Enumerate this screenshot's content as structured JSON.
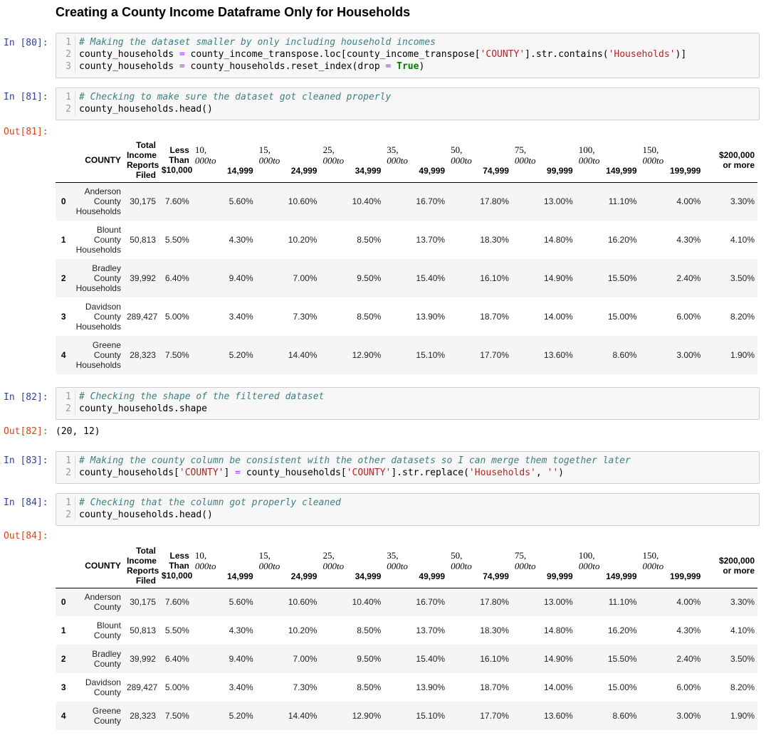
{
  "heading": "Creating a County Income Dataframe Only for Households",
  "cells": [
    {
      "prompt": "In [80]:",
      "lines": [
        {
          "n": "1",
          "parts": [
            [
              "cm",
              "# Making the dataset smaller by only including household incomes"
            ]
          ]
        },
        {
          "n": "2",
          "parts": [
            [
              "",
              "county_households "
            ],
            [
              "op",
              "="
            ],
            [
              "",
              " county_income_transpose.loc[county_income_transpose["
            ],
            [
              "st",
              "'COUNTY'"
            ],
            [
              "",
              "].str.contains("
            ],
            [
              "st",
              "'Households'"
            ],
            [
              "",
              ")]"
            ]
          ]
        },
        {
          "n": "3",
          "parts": [
            [
              "",
              "county_households "
            ],
            [
              "op",
              "="
            ],
            [
              "",
              " county_households.reset_index(drop "
            ],
            [
              "op",
              "="
            ],
            [
              "",
              " "
            ],
            [
              "kw",
              "True"
            ],
            [
              "",
              ")"
            ]
          ]
        }
      ]
    },
    {
      "prompt": "In [81]:",
      "lines": [
        {
          "n": "1",
          "parts": [
            [
              "cm",
              "# Checking to make sure the dataset got cleaned properly"
            ]
          ]
        },
        {
          "n": "2",
          "parts": [
            [
              "",
              "county_households.head()"
            ]
          ]
        }
      ]
    },
    {
      "prompt": "In [82]:",
      "lines": [
        {
          "n": "1",
          "parts": [
            [
              "cm",
              "# Checking the shape of the filtered dataset"
            ]
          ]
        },
        {
          "n": "2",
          "parts": [
            [
              "",
              "county_households.shape"
            ]
          ]
        }
      ]
    },
    {
      "prompt": "In [83]:",
      "lines": [
        {
          "n": "1",
          "parts": [
            [
              "cm",
              "# Making the county column be consistent with the other datasets so I can merge them together later"
            ]
          ]
        },
        {
          "n": "2",
          "parts": [
            [
              "",
              "county_households["
            ],
            [
              "st",
              "'COUNTY'"
            ],
            [
              "",
              "] "
            ],
            [
              "op",
              "="
            ],
            [
              "",
              " county_households["
            ],
            [
              "st",
              "'COUNTY'"
            ],
            [
              "",
              "].str.replace("
            ],
            [
              "st",
              "'Households'"
            ],
            [
              "",
              ", "
            ],
            [
              "st",
              "''"
            ],
            [
              "",
              ")"
            ]
          ]
        }
      ]
    },
    {
      "prompt": "In [84]:",
      "lines": [
        {
          "n": "1",
          "parts": [
            [
              "cm",
              "# Checking that the column got properly cleaned"
            ]
          ]
        },
        {
          "n": "2",
          "parts": [
            [
              "",
              "county_households.head()"
            ]
          ]
        }
      ]
    }
  ],
  "outputs": {
    "out81_prompt": "Out[81]:",
    "out82_prompt": "Out[82]:",
    "out82_text": "(20, 12)",
    "out84_prompt": "Out[84]:"
  },
  "table_header": {
    "county": "COUNTY",
    "total": [
      "Total",
      "Income",
      "Reports",
      "Filed"
    ],
    "less": [
      "Less",
      "Than",
      "$10,000"
    ],
    "ranges": [
      {
        "top": "10,",
        "mid": "000to",
        "end": "14,999"
      },
      {
        "top": "15,",
        "mid": "000to",
        "end": "24,999"
      },
      {
        "top": "25,",
        "mid": "000to",
        "end": "34,999"
      },
      {
        "top": "35,",
        "mid": "000to",
        "end": "49,999"
      },
      {
        "top": "50,",
        "mid": "000to",
        "end": "74,999"
      },
      {
        "top": "75,",
        "mid": "000to",
        "end": "99,999"
      },
      {
        "top": "100,",
        "mid": "000to",
        "end": "149,999"
      },
      {
        "top": "150,",
        "mid": "000to",
        "end": "199,999"
      }
    ],
    "over": [
      "$200,000",
      "or more"
    ]
  },
  "table81_rows": [
    {
      "idx": "0",
      "county": [
        "Anderson",
        "County",
        "Households"
      ],
      "vals": [
        "30,175",
        "7.60%",
        "5.60%",
        "10.60%",
        "10.40%",
        "16.70%",
        "17.80%",
        "13.00%",
        "11.10%",
        "4.00%",
        "3.30%"
      ]
    },
    {
      "idx": "1",
      "county": [
        "Blount",
        "County",
        "Households"
      ],
      "vals": [
        "50,813",
        "5.50%",
        "4.30%",
        "10.20%",
        "8.50%",
        "13.70%",
        "18.30%",
        "14.80%",
        "16.20%",
        "4.30%",
        "4.10%"
      ]
    },
    {
      "idx": "2",
      "county": [
        "Bradley",
        "County",
        "Households"
      ],
      "vals": [
        "39,992",
        "6.40%",
        "9.40%",
        "7.00%",
        "9.50%",
        "15.40%",
        "16.10%",
        "14.90%",
        "15.50%",
        "2.40%",
        "3.50%"
      ]
    },
    {
      "idx": "3",
      "county": [
        "Davidson",
        "County",
        "Households"
      ],
      "vals": [
        "289,427",
        "5.00%",
        "3.40%",
        "7.30%",
        "8.50%",
        "13.90%",
        "18.70%",
        "14.00%",
        "15.00%",
        "6.00%",
        "8.20%"
      ]
    },
    {
      "idx": "4",
      "county": [
        "Greene",
        "County",
        "Households"
      ],
      "vals": [
        "28,323",
        "7.50%",
        "5.20%",
        "14.40%",
        "12.90%",
        "15.10%",
        "17.70%",
        "13.60%",
        "8.60%",
        "3.00%",
        "1.90%"
      ]
    }
  ],
  "table84_rows": [
    {
      "idx": "0",
      "county": [
        "Anderson",
        "County"
      ],
      "vals": [
        "30,175",
        "7.60%",
        "5.60%",
        "10.60%",
        "10.40%",
        "16.70%",
        "17.80%",
        "13.00%",
        "11.10%",
        "4.00%",
        "3.30%"
      ]
    },
    {
      "idx": "1",
      "county": [
        "Blount",
        "County"
      ],
      "vals": [
        "50,813",
        "5.50%",
        "4.30%",
        "10.20%",
        "8.50%",
        "13.70%",
        "18.30%",
        "14.80%",
        "16.20%",
        "4.30%",
        "4.10%"
      ]
    },
    {
      "idx": "2",
      "county": [
        "Bradley",
        "County"
      ],
      "vals": [
        "39,992",
        "6.40%",
        "9.40%",
        "7.00%",
        "9.50%",
        "15.40%",
        "16.10%",
        "14.90%",
        "15.50%",
        "2.40%",
        "3.50%"
      ]
    },
    {
      "idx": "3",
      "county": [
        "Davidson",
        "County"
      ],
      "vals": [
        "289,427",
        "5.00%",
        "3.40%",
        "7.30%",
        "8.50%",
        "13.90%",
        "18.70%",
        "14.00%",
        "15.00%",
        "6.00%",
        "8.20%"
      ]
    },
    {
      "idx": "4",
      "county": [
        "Greene",
        "County"
      ],
      "vals": [
        "28,323",
        "7.50%",
        "5.20%",
        "14.40%",
        "12.90%",
        "15.10%",
        "17.70%",
        "13.60%",
        "8.60%",
        "3.00%",
        "1.90%"
      ]
    }
  ]
}
